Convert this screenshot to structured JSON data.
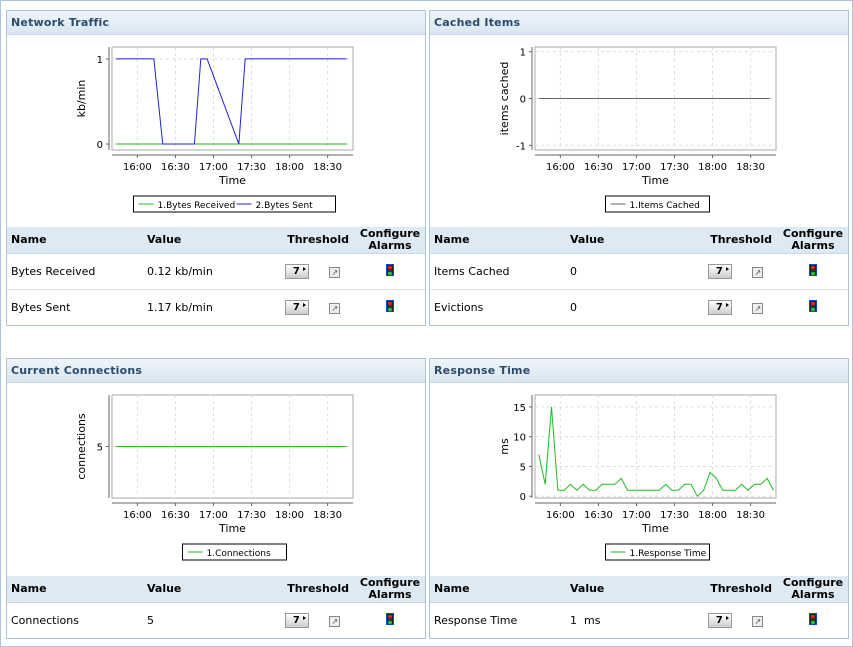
{
  "columns": {
    "name": "Name",
    "value": "Value",
    "threshold": "Threshold",
    "configure": "Configure Alarms"
  },
  "colors": {
    "green": "#22bb22",
    "blue": "#2222cc",
    "gray": "#666666"
  },
  "panels": [
    {
      "title": "Network Traffic",
      "rows": [
        {
          "name": "Bytes Received",
          "value": "0.12 kb/min",
          "threshold": "7"
        },
        {
          "name": "Bytes Sent",
          "value": "1.17 kb/min",
          "threshold": "7"
        }
      ]
    },
    {
      "title": "Cached Items",
      "rows": [
        {
          "name": "Items Cached",
          "value": "0",
          "threshold": "7"
        },
        {
          "name": "Evictions",
          "value": "0",
          "threshold": "7"
        }
      ]
    },
    {
      "title": "Current Connections",
      "rows": [
        {
          "name": "Connections",
          "value": "5",
          "threshold": "7"
        }
      ]
    },
    {
      "title": "Response Time",
      "rows": [
        {
          "name": "Response Time",
          "value": "1  ms",
          "threshold": "7"
        }
      ]
    }
  ],
  "chart_data": [
    {
      "type": "line",
      "xlabel": "Time",
      "ylabel": "kb/min",
      "xlim": [
        "15:40",
        "18:50"
      ],
      "xticks": [
        "16:00",
        "16:30",
        "17:00",
        "17:30",
        "18:00",
        "18:30"
      ],
      "ylim": [
        -0.07,
        1.14
      ],
      "yticks": [
        0,
        1
      ],
      "series": [
        {
          "name": "1.Bytes Received",
          "color": "#22bb22",
          "x": [
            "15:43",
            "18:45"
          ],
          "y": [
            0,
            0
          ]
        },
        {
          "name": "2.Bytes Sent",
          "color": "#2222cc",
          "x": [
            "15:43",
            "16:13",
            "16:20",
            "16:45",
            "16:50",
            "16:55",
            "17:20",
            "17:25",
            "18:45"
          ],
          "y": [
            1,
            1,
            0,
            0,
            1,
            1,
            0,
            1,
            1
          ]
        }
      ]
    },
    {
      "type": "line",
      "xlabel": "Time",
      "ylabel": "items cached",
      "xlim": [
        "15:40",
        "18:50"
      ],
      "xticks": [
        "16:00",
        "16:30",
        "17:00",
        "17:30",
        "18:00",
        "18:30"
      ],
      "ylim": [
        -1.1,
        1.1
      ],
      "yticks": [
        -1,
        0,
        1
      ],
      "series": [
        {
          "name": "1.Items Cached",
          "color": "#666666",
          "x": [
            "15:43",
            "18:45"
          ],
          "y": [
            0,
            0
          ]
        }
      ]
    },
    {
      "type": "line",
      "xlabel": "Time",
      "ylabel": "connections",
      "xlim": [
        "15:40",
        "18:50"
      ],
      "xticks": [
        "16:00",
        "16:30",
        "17:00",
        "17:30",
        "18:00",
        "18:30"
      ],
      "ylim": [
        0,
        10
      ],
      "yticks": [
        5
      ],
      "series": [
        {
          "name": "1.Connections",
          "color": "#22bb22",
          "x": [
            "15:43",
            "18:45"
          ],
          "y": [
            5,
            5
          ]
        }
      ]
    },
    {
      "type": "line",
      "xlabel": "Time",
      "ylabel": "ms",
      "xlim": [
        "15:40",
        "18:50"
      ],
      "xticks": [
        "16:00",
        "16:30",
        "17:00",
        "17:30",
        "18:00",
        "18:30"
      ],
      "ylim": [
        -0.3,
        17
      ],
      "yticks": [
        0,
        5,
        10,
        15
      ],
      "series": [
        {
          "name": "1.Response Time",
          "color": "#22bb22",
          "step": 5,
          "start": "15:40",
          "y": [
            7,
            2,
            15,
            1,
            1,
            2,
            1,
            2,
            1,
            1,
            2,
            2,
            2,
            3,
            1,
            1,
            1,
            1,
            1,
            1,
            2,
            1,
            1,
            2,
            2,
            0,
            1,
            4,
            3,
            1,
            1,
            1,
            2,
            1,
            2,
            2,
            3,
            1
          ]
        }
      ]
    }
  ]
}
